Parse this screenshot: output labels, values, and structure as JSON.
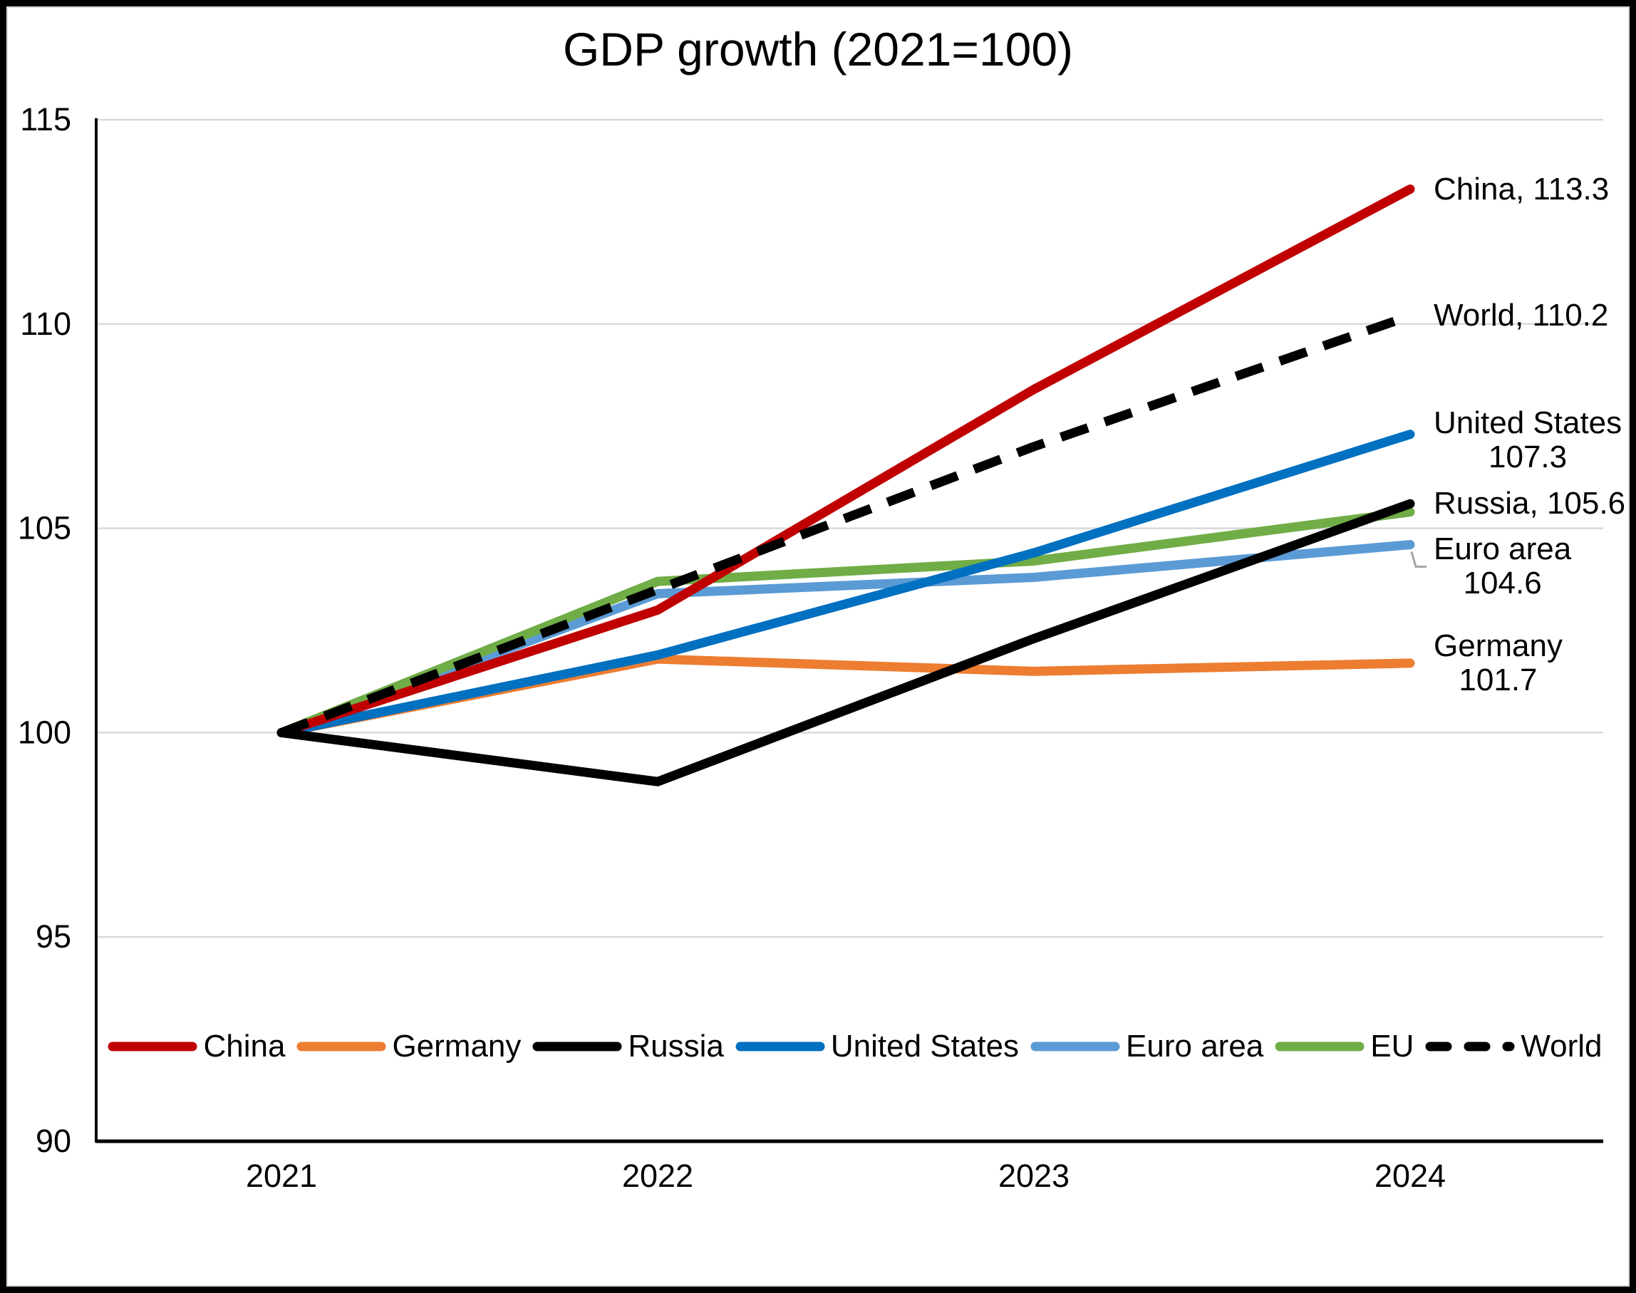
{
  "chart_data": {
    "type": "line",
    "title": "GDP growth (2021=100)",
    "x": [
      2021,
      2022,
      2023,
      2024
    ],
    "x_tick_labels": [
      "2021",
      "2022",
      "2023",
      "2024"
    ],
    "ylim": [
      90,
      115
    ],
    "y_tick_step": 5,
    "y_tick_labels": [
      "90",
      "95",
      "100",
      "105",
      "110",
      "115"
    ],
    "grid": true,
    "legend_position": "bottom",
    "series": [
      {
        "name": "China",
        "color": "#C00000",
        "dashed": false,
        "values": [
          100,
          103.0,
          108.4,
          113.3
        ],
        "end_label_lines": [
          "China, 113.3"
        ]
      },
      {
        "name": "Germany",
        "color": "#ED7D31",
        "dashed": false,
        "values": [
          100,
          101.8,
          101.5,
          101.7
        ],
        "end_label_lines": [
          "Germany",
          "101.7"
        ]
      },
      {
        "name": "Russia",
        "color": "#000000",
        "dashed": false,
        "values": [
          100,
          98.8,
          102.3,
          105.6
        ],
        "end_label_lines": [
          "Russia, 105.6"
        ]
      },
      {
        "name": "United States",
        "color": "#0070C0",
        "dashed": false,
        "values": [
          100,
          101.9,
          104.4,
          107.3
        ],
        "end_label_lines": [
          "United States",
          "107.3"
        ]
      },
      {
        "name": "Euro area",
        "color": "#5B9BD5",
        "dashed": false,
        "values": [
          100,
          103.4,
          103.8,
          104.6
        ],
        "end_label_lines": [
          "Euro area",
          "104.6"
        ],
        "leader_line": true
      },
      {
        "name": "EU",
        "color": "#70AD47",
        "dashed": false,
        "values": [
          100,
          103.7,
          104.2,
          105.4
        ],
        "end_label_lines": []
      },
      {
        "name": "World",
        "color": "#000000",
        "dashed": true,
        "values": [
          100,
          103.5,
          107.0,
          110.2
        ],
        "end_label_lines": [
          "World, 110.2"
        ]
      }
    ],
    "legend": [
      "China",
      "Germany",
      "Russia",
      "United States",
      "Euro area",
      "EU",
      "World"
    ],
    "leader_line_color": "#A6A6A6",
    "gridline_color": "#D9D9D9"
  }
}
